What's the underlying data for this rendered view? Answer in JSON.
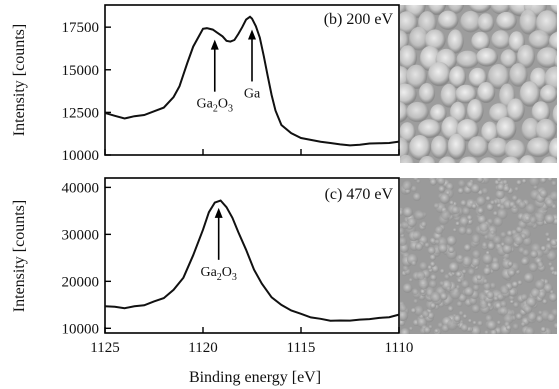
{
  "chart_data": [
    {
      "type": "line",
      "panel_label": "(b) 200 eV",
      "xlabel": "",
      "ylabel": "Intensity [counts]",
      "xlim": [
        1125,
        1110
      ],
      "ylim": [
        10000,
        18800
      ],
      "x_reversed": true,
      "yticks": [
        "10000",
        "12500",
        "15000",
        "17500"
      ],
      "ytick_values": [
        10000,
        12500,
        15000,
        17500
      ],
      "xtick_values": [
        1125,
        1120,
        1115,
        1110
      ],
      "series": [
        {
          "x": [
            1125.0,
            1124.5,
            1124.0,
            1123.5,
            1123.0,
            1122.5,
            1122.0,
            1121.5,
            1121.2,
            1121.0,
            1120.8,
            1120.5,
            1120.2,
            1120.0,
            1119.8,
            1119.5,
            1119.3,
            1119.0,
            1118.8,
            1118.6,
            1118.4,
            1118.2,
            1118.0,
            1117.8,
            1117.6,
            1117.5,
            1117.3,
            1117.1,
            1116.9,
            1116.7,
            1116.5,
            1116.3,
            1116.0,
            1115.5,
            1115.0,
            1114.5,
            1114.0,
            1113.5,
            1113.0,
            1112.5,
            1112.0,
            1111.5,
            1111.0,
            1110.5,
            1110.0
          ],
          "y": [
            12500,
            12300,
            12200,
            12250,
            12350,
            12500,
            12800,
            13400,
            14100,
            14700,
            15400,
            16300,
            17000,
            17400,
            17500,
            17350,
            17200,
            16900,
            16700,
            16650,
            16800,
            17100,
            17500,
            17900,
            18100,
            18000,
            17600,
            16900,
            15800,
            14600,
            13500,
            12600,
            11800,
            11300,
            11000,
            10850,
            10750,
            10700,
            10650,
            10600,
            10600,
            10650,
            10650,
            10700,
            10800
          ]
        }
      ],
      "annotations": [
        {
          "label": "Ga",
          "sub": "2",
          "label2": "O",
          "sub2": "3",
          "x": 1119.4,
          "y": 17000
        },
        {
          "label": "Ga",
          "x": 1117.5,
          "y": 17600
        }
      ]
    },
    {
      "type": "line",
      "panel_label": "(c) 470 eV",
      "xlabel": "Binding energy [eV]",
      "ylabel": "Intensity [counts]",
      "xlim": [
        1125,
        1110
      ],
      "ylim": [
        9000,
        42000
      ],
      "x_reversed": true,
      "yticks": [
        "10000",
        "20000",
        "30000",
        "40000"
      ],
      "ytick_values": [
        10000,
        20000,
        30000,
        40000
      ],
      "xticks": [
        "1125",
        "1120",
        "1115",
        "1110"
      ],
      "xtick_values": [
        1125,
        1120,
        1115,
        1110
      ],
      "series": [
        {
          "x": [
            1125.0,
            1124.5,
            1124.0,
            1123.5,
            1123.0,
            1122.5,
            1122.0,
            1121.5,
            1121.0,
            1120.5,
            1120.0,
            1119.7,
            1119.4,
            1119.1,
            1118.8,
            1118.5,
            1118.2,
            1117.8,
            1117.4,
            1117.0,
            1116.5,
            1116.0,
            1115.5,
            1115.0,
            1114.5,
            1114.0,
            1113.5,
            1113.0,
            1112.5,
            1112.0,
            1111.5,
            1111.0,
            1110.5,
            1110.0
          ],
          "y": [
            14800,
            14600,
            14500,
            14600,
            14900,
            15500,
            16500,
            18200,
            21000,
            25500,
            31000,
            34500,
            36800,
            37200,
            36000,
            33500,
            30500,
            26500,
            22500,
            19500,
            16800,
            15000,
            13800,
            12900,
            12300,
            12000,
            11800,
            11700,
            11650,
            11700,
            11900,
            12200,
            12500,
            13000
          ]
        }
      ],
      "annotations": [
        {
          "label": "Ga",
          "sub": "2",
          "label2": "O",
          "sub2": "3",
          "x": 1119.2,
          "y": 36500
        }
      ]
    }
  ]
}
